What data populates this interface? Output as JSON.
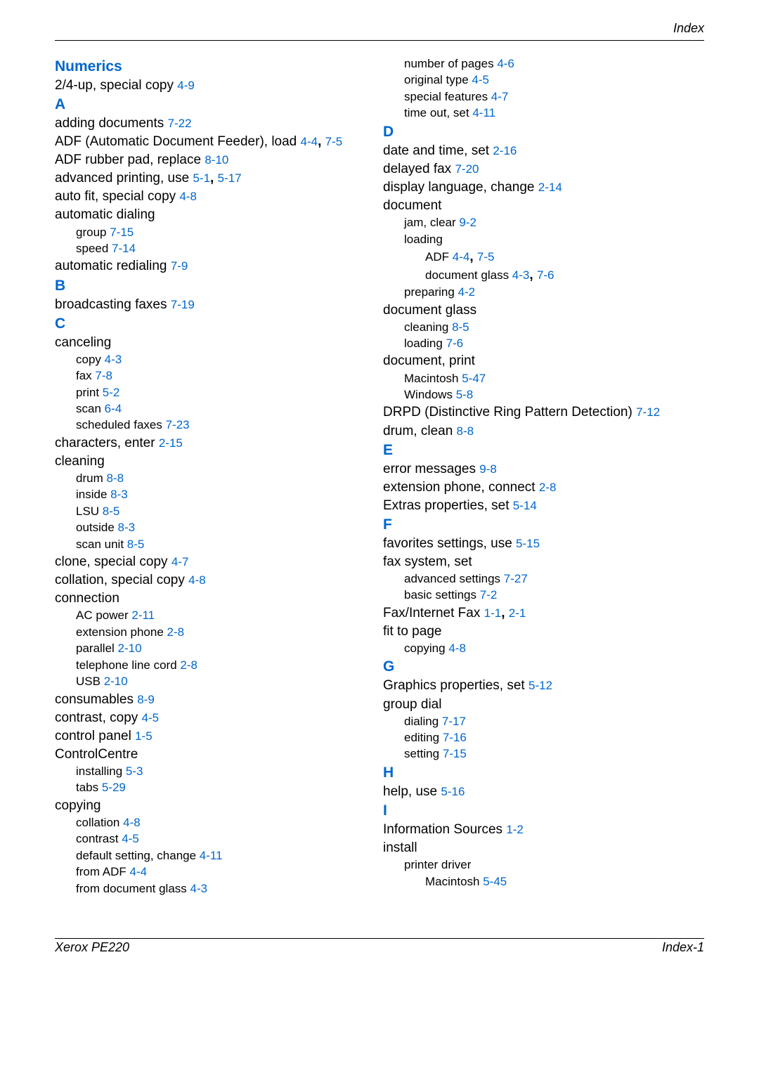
{
  "header": {
    "label": "Index"
  },
  "footer": {
    "left": "Xerox PE220",
    "right": "Index-1"
  },
  "colors": {
    "link": "#0066cc",
    "text": "#000000",
    "rule": "#000000"
  },
  "left": [
    {
      "type": "section",
      "text": "Numerics"
    },
    {
      "type": "entry",
      "level": 0,
      "text": "2/4-up, special copy ",
      "refs": [
        "4-9"
      ]
    },
    {
      "type": "section",
      "text": "A"
    },
    {
      "type": "entry",
      "level": 0,
      "text": "adding documents ",
      "refs": [
        "7-22"
      ]
    },
    {
      "type": "entry",
      "level": 0,
      "text": "ADF (Automatic Document Feeder), load ",
      "refs": [
        "4-4",
        "7-5"
      ]
    },
    {
      "type": "entry",
      "level": 0,
      "text": "ADF rubber pad, replace ",
      "refs": [
        "8-10"
      ]
    },
    {
      "type": "entry",
      "level": 0,
      "text": "advanced printing, use ",
      "refs": [
        "5-1",
        "5-17"
      ]
    },
    {
      "type": "entry",
      "level": 0,
      "text": "auto fit, special copy ",
      "refs": [
        "4-8"
      ]
    },
    {
      "type": "entry",
      "level": 0,
      "text": "automatic dialing"
    },
    {
      "type": "entry",
      "level": 1,
      "text": "group ",
      "refs": [
        "7-15"
      ]
    },
    {
      "type": "entry",
      "level": 1,
      "text": "speed ",
      "refs": [
        "7-14"
      ]
    },
    {
      "type": "entry",
      "level": 0,
      "text": "automatic redialing ",
      "refs": [
        "7-9"
      ]
    },
    {
      "type": "section",
      "text": "B"
    },
    {
      "type": "entry",
      "level": 0,
      "text": "broadcasting faxes ",
      "refs": [
        "7-19"
      ]
    },
    {
      "type": "section",
      "text": "C"
    },
    {
      "type": "entry",
      "level": 0,
      "text": "canceling"
    },
    {
      "type": "entry",
      "level": 1,
      "text": "copy ",
      "refs": [
        "4-3"
      ]
    },
    {
      "type": "entry",
      "level": 1,
      "text": "fax ",
      "refs": [
        "7-8"
      ]
    },
    {
      "type": "entry",
      "level": 1,
      "text": "print ",
      "refs": [
        "5-2"
      ]
    },
    {
      "type": "entry",
      "level": 1,
      "text": "scan ",
      "refs": [
        "6-4"
      ]
    },
    {
      "type": "entry",
      "level": 1,
      "text": "scheduled faxes ",
      "refs": [
        "7-23"
      ]
    },
    {
      "type": "entry",
      "level": 0,
      "text": "characters, enter ",
      "refs": [
        "2-15"
      ]
    },
    {
      "type": "entry",
      "level": 0,
      "text": "cleaning"
    },
    {
      "type": "entry",
      "level": 1,
      "text": "drum ",
      "refs": [
        "8-8"
      ]
    },
    {
      "type": "entry",
      "level": 1,
      "text": "inside ",
      "refs": [
        "8-3"
      ]
    },
    {
      "type": "entry",
      "level": 1,
      "text": "LSU ",
      "refs": [
        "8-5"
      ]
    },
    {
      "type": "entry",
      "level": 1,
      "text": "outside ",
      "refs": [
        "8-3"
      ]
    },
    {
      "type": "entry",
      "level": 1,
      "text": "scan unit ",
      "refs": [
        "8-5"
      ]
    },
    {
      "type": "entry",
      "level": 0,
      "text": "clone, special copy ",
      "refs": [
        "4-7"
      ]
    },
    {
      "type": "entry",
      "level": 0,
      "text": "collation, special copy ",
      "refs": [
        "4-8"
      ]
    },
    {
      "type": "entry",
      "level": 0,
      "text": "connection"
    },
    {
      "type": "entry",
      "level": 1,
      "text": "AC power ",
      "refs": [
        "2-11"
      ]
    },
    {
      "type": "entry",
      "level": 1,
      "text": "extension phone ",
      "refs": [
        "2-8"
      ]
    },
    {
      "type": "entry",
      "level": 1,
      "text": "parallel ",
      "refs": [
        "2-10"
      ]
    },
    {
      "type": "entry",
      "level": 1,
      "text": "telephone line cord ",
      "refs": [
        "2-8"
      ]
    },
    {
      "type": "entry",
      "level": 1,
      "text": "USB ",
      "refs": [
        "2-10"
      ]
    },
    {
      "type": "entry",
      "level": 0,
      "text": "consumables ",
      "refs": [
        "8-9"
      ]
    },
    {
      "type": "entry",
      "level": 0,
      "text": "contrast, copy ",
      "refs": [
        "4-5"
      ]
    },
    {
      "type": "entry",
      "level": 0,
      "text": "control panel ",
      "refs": [
        "1-5"
      ]
    },
    {
      "type": "entry",
      "level": 0,
      "text": "ControlCentre"
    },
    {
      "type": "entry",
      "level": 1,
      "text": "installing ",
      "refs": [
        "5-3"
      ]
    },
    {
      "type": "entry",
      "level": 1,
      "text": "tabs ",
      "refs": [
        "5-29"
      ]
    },
    {
      "type": "entry",
      "level": 0,
      "text": "copying"
    },
    {
      "type": "entry",
      "level": 1,
      "text": "collation ",
      "refs": [
        "4-8"
      ]
    },
    {
      "type": "entry",
      "level": 1,
      "text": "contrast ",
      "refs": [
        "4-5"
      ]
    },
    {
      "type": "entry",
      "level": 1,
      "text": "default setting, change ",
      "refs": [
        "4-11"
      ]
    },
    {
      "type": "entry",
      "level": 1,
      "text": "from ADF ",
      "refs": [
        "4-4"
      ]
    },
    {
      "type": "entry",
      "level": 1,
      "text": "from document glass ",
      "refs": [
        "4-3"
      ]
    }
  ],
  "right": [
    {
      "type": "entry",
      "level": 1,
      "text": "number of pages ",
      "refs": [
        "4-6"
      ]
    },
    {
      "type": "entry",
      "level": 1,
      "text": "original type ",
      "refs": [
        "4-5"
      ]
    },
    {
      "type": "entry",
      "level": 1,
      "text": "special features ",
      "refs": [
        "4-7"
      ]
    },
    {
      "type": "entry",
      "level": 1,
      "text": "time out, set ",
      "refs": [
        "4-11"
      ]
    },
    {
      "type": "section",
      "text": "D"
    },
    {
      "type": "entry",
      "level": 0,
      "text": "date and time, set ",
      "refs": [
        "2-16"
      ]
    },
    {
      "type": "entry",
      "level": 0,
      "text": "delayed fax ",
      "refs": [
        "7-20"
      ]
    },
    {
      "type": "entry",
      "level": 0,
      "text": "display language, change ",
      "refs": [
        "2-14"
      ]
    },
    {
      "type": "entry",
      "level": 0,
      "text": "document"
    },
    {
      "type": "entry",
      "level": 1,
      "text": "jam, clear ",
      "refs": [
        "9-2"
      ]
    },
    {
      "type": "entry",
      "level": 1,
      "text": "loading"
    },
    {
      "type": "entry",
      "level": 2,
      "text": "ADF ",
      "refs": [
        "4-4",
        "7-5"
      ]
    },
    {
      "type": "entry",
      "level": 2,
      "text": "document glass ",
      "refs": [
        "4-3",
        "7-6"
      ]
    },
    {
      "type": "entry",
      "level": 1,
      "text": "preparing ",
      "refs": [
        "4-2"
      ]
    },
    {
      "type": "entry",
      "level": 0,
      "text": "document glass"
    },
    {
      "type": "entry",
      "level": 1,
      "text": "cleaning ",
      "refs": [
        "8-5"
      ]
    },
    {
      "type": "entry",
      "level": 1,
      "text": "loading ",
      "refs": [
        "7-6"
      ]
    },
    {
      "type": "entry",
      "level": 0,
      "text": "document, print"
    },
    {
      "type": "entry",
      "level": 1,
      "text": "Macintosh ",
      "refs": [
        "5-47"
      ]
    },
    {
      "type": "entry",
      "level": 1,
      "text": "Windows ",
      "refs": [
        "5-8"
      ]
    },
    {
      "type": "entry",
      "level": 0,
      "text": "DRPD (Distinctive Ring Pattern Detection) ",
      "refs": [
        "7-12"
      ]
    },
    {
      "type": "entry",
      "level": 0,
      "text": "drum, clean ",
      "refs": [
        "8-8"
      ]
    },
    {
      "type": "section",
      "text": "E"
    },
    {
      "type": "entry",
      "level": 0,
      "text": "error messages ",
      "refs": [
        "9-8"
      ]
    },
    {
      "type": "entry",
      "level": 0,
      "text": "extension phone, connect ",
      "refs": [
        "2-8"
      ]
    },
    {
      "type": "entry",
      "level": 0,
      "text": "Extras properties, set ",
      "refs": [
        "5-14"
      ]
    },
    {
      "type": "section",
      "text": "F"
    },
    {
      "type": "entry",
      "level": 0,
      "text": "favorites settings, use ",
      "refs": [
        "5-15"
      ]
    },
    {
      "type": "entry",
      "level": 0,
      "text": "fax system, set"
    },
    {
      "type": "entry",
      "level": 1,
      "text": "advanced settings ",
      "refs": [
        "7-27"
      ]
    },
    {
      "type": "entry",
      "level": 1,
      "text": "basic settings ",
      "refs": [
        "7-2"
      ]
    },
    {
      "type": "entry",
      "level": 0,
      "text": "Fax/Internet Fax ",
      "refs": [
        "1-1",
        "2-1"
      ]
    },
    {
      "type": "entry",
      "level": 0,
      "text": "fit to page"
    },
    {
      "type": "entry",
      "level": 1,
      "text": "copying ",
      "refs": [
        "4-8"
      ]
    },
    {
      "type": "section",
      "text": "G"
    },
    {
      "type": "entry",
      "level": 0,
      "text": "Graphics properties, set ",
      "refs": [
        "5-12"
      ]
    },
    {
      "type": "entry",
      "level": 0,
      "text": "group dial"
    },
    {
      "type": "entry",
      "level": 1,
      "text": "dialing ",
      "refs": [
        "7-17"
      ]
    },
    {
      "type": "entry",
      "level": 1,
      "text": "editing ",
      "refs": [
        "7-16"
      ]
    },
    {
      "type": "entry",
      "level": 1,
      "text": "setting ",
      "refs": [
        "7-15"
      ]
    },
    {
      "type": "section",
      "text": "H"
    },
    {
      "type": "entry",
      "level": 0,
      "text": "help, use ",
      "refs": [
        "5-16"
      ]
    },
    {
      "type": "section",
      "text": "I"
    },
    {
      "type": "entry",
      "level": 0,
      "text": "Information Sources ",
      "refs": [
        "1-2"
      ]
    },
    {
      "type": "entry",
      "level": 0,
      "text": "install"
    },
    {
      "type": "entry",
      "level": 1,
      "text": "printer driver"
    },
    {
      "type": "entry",
      "level": 2,
      "text": "Macintosh ",
      "refs": [
        "5-45"
      ]
    }
  ]
}
